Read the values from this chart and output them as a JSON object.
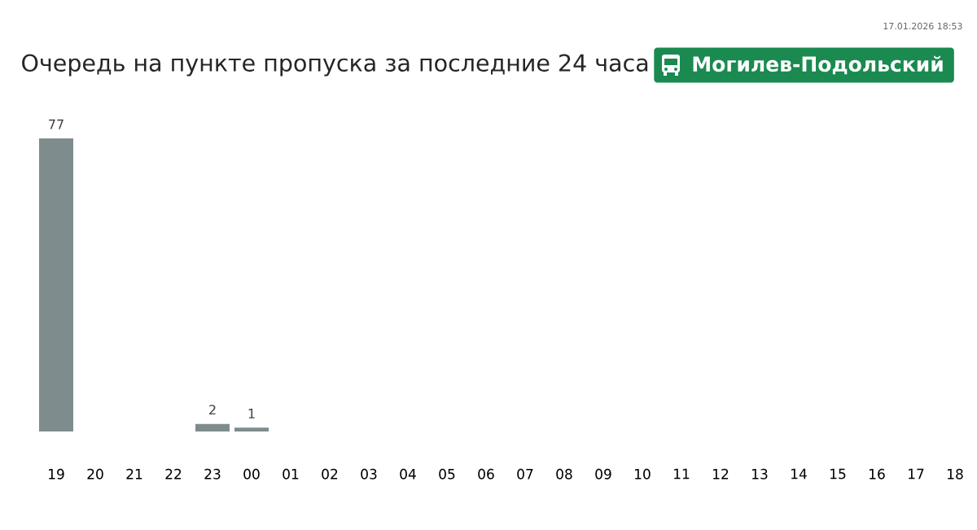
{
  "chart_data": {
    "type": "bar",
    "title": "Очередь на пункте пропуска за последние 24 часа",
    "subtitle": "Могилев-Подольский",
    "annotations": [
      "17.01.2026 18:53"
    ],
    "categories": [
      "19",
      "20",
      "21",
      "22",
      "23",
      "00",
      "01",
      "02",
      "03",
      "04",
      "05",
      "06",
      "07",
      "08",
      "09",
      "10",
      "11",
      "12",
      "13",
      "14",
      "15",
      "16",
      "17",
      "18"
    ],
    "values": [
      77,
      null,
      null,
      null,
      2,
      1,
      null,
      null,
      null,
      null,
      null,
      null,
      null,
      null,
      null,
      null,
      null,
      null,
      null,
      null,
      null,
      null,
      null,
      null
    ],
    "color": "#7f8c8d",
    "data_labels": true
  }
}
